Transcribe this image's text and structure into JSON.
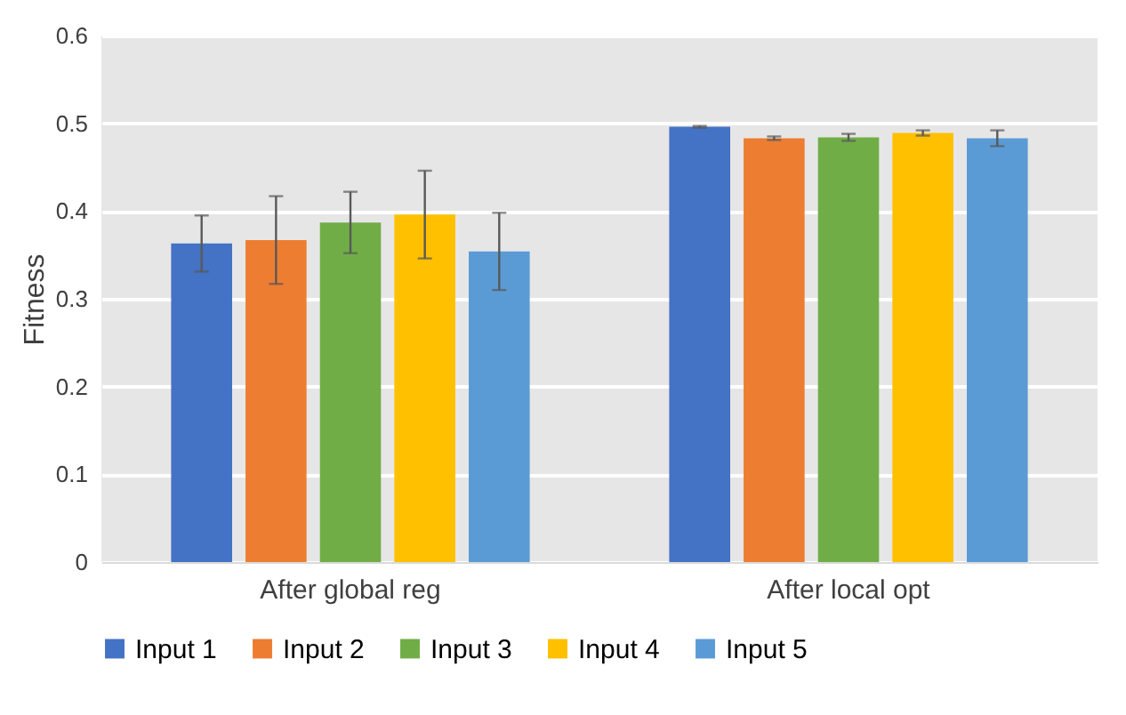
{
  "chart_data": {
    "type": "bar",
    "ylabel": "Fitness",
    "categories": [
      "After global reg",
      "After local opt"
    ],
    "series": [
      {
        "name": "Input 1",
        "color": "#4472c4",
        "values": [
          0.363,
          0.496
        ],
        "errors": [
          0.032,
          0.001
        ]
      },
      {
        "name": "Input 2",
        "color": "#ed7d31",
        "values": [
          0.367,
          0.483
        ],
        "errors": [
          0.05,
          0.002
        ]
      },
      {
        "name": "Input 3",
        "color": "#70ad47",
        "values": [
          0.387,
          0.484
        ],
        "errors": [
          0.035,
          0.004
        ]
      },
      {
        "name": "Input 4",
        "color": "#ffc000",
        "values": [
          0.396,
          0.489
        ],
        "errors": [
          0.05,
          0.003
        ]
      },
      {
        "name": "Input 5",
        "color": "#5b9bd5",
        "values": [
          0.354,
          0.483
        ],
        "errors": [
          0.044,
          0.009
        ]
      }
    ],
    "ylim": [
      0,
      0.6
    ],
    "yticks": [
      0,
      0.1,
      0.2,
      0.3,
      0.4,
      0.5,
      0.6
    ],
    "grid": true,
    "legend": "bottom"
  }
}
